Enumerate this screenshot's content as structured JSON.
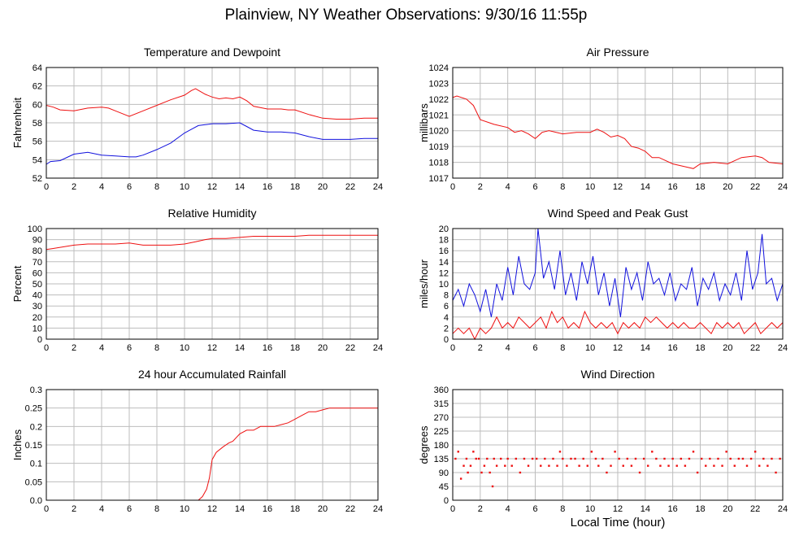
{
  "title": "Plainview, NY Weather Observations: 9/30/16 11:55p",
  "xlabel": "Local Time (hour)",
  "colors": {
    "red": "#ee1111",
    "blue": "#1111dd",
    "grid": "#bdbdbd"
  },
  "chart_data": [
    {
      "type": "line",
      "title": "Temperature and Dewpoint",
      "ylabel": "Fahrenheit",
      "xlim": [
        0,
        24
      ],
      "ylim": [
        52,
        64
      ],
      "xticks": [
        0,
        2,
        4,
        6,
        8,
        10,
        12,
        14,
        16,
        18,
        20,
        22,
        24
      ],
      "yticks": [
        52,
        54,
        56,
        58,
        60,
        62,
        64
      ],
      "grid": true,
      "series": [
        {
          "color": "red",
          "x": [
            0,
            0.5,
            1,
            2,
            3,
            4,
            4.5,
            5,
            5.5,
            6,
            7,
            8,
            9,
            10,
            10.5,
            10.8,
            11.5,
            12,
            12.5,
            13,
            13.5,
            14,
            14.5,
            15,
            16,
            17,
            17.5,
            18,
            19,
            20,
            21,
            22,
            23,
            24
          ],
          "y": [
            59.9,
            59.7,
            59.4,
            59.3,
            59.6,
            59.7,
            59.6,
            59.3,
            59.0,
            58.7,
            59.3,
            59.9,
            60.5,
            61.0,
            61.5,
            61.7,
            61.1,
            60.8,
            60.6,
            60.7,
            60.6,
            60.8,
            60.4,
            59.8,
            59.5,
            59.5,
            59.4,
            59.4,
            58.9,
            58.5,
            58.4,
            58.4,
            58.5,
            58.5
          ]
        },
        {
          "color": "blue",
          "x": [
            0,
            0.3,
            1,
            2,
            3,
            4,
            5,
            6,
            6.5,
            7,
            8,
            9,
            10,
            10.5,
            11,
            11.5,
            12,
            13,
            14,
            14.5,
            15,
            16,
            17,
            18,
            19,
            20,
            21,
            22,
            23,
            24
          ],
          "y": [
            53.5,
            53.8,
            53.9,
            54.6,
            54.8,
            54.5,
            54.4,
            54.3,
            54.3,
            54.5,
            55.1,
            55.8,
            56.9,
            57.3,
            57.7,
            57.8,
            57.9,
            57.9,
            58.0,
            57.6,
            57.2,
            57.0,
            57.0,
            56.9,
            56.5,
            56.2,
            56.2,
            56.2,
            56.3,
            56.3
          ]
        }
      ]
    },
    {
      "type": "line",
      "title": "Air Pressure",
      "ylabel": "millibars",
      "xlim": [
        0,
        24
      ],
      "ylim": [
        1017,
        1024
      ],
      "xticks": [
        0,
        2,
        4,
        6,
        8,
        10,
        12,
        14,
        16,
        18,
        20,
        22,
        24
      ],
      "yticks": [
        1017,
        1018,
        1019,
        1020,
        1021,
        1022,
        1023,
        1024
      ],
      "grid": true,
      "series": [
        {
          "color": "red",
          "x": [
            0,
            0.3,
            1,
            1.5,
            2,
            3,
            4,
            4.5,
            5,
            5.5,
            6,
            6.5,
            7,
            8,
            9,
            10,
            10.5,
            11,
            11.5,
            12,
            12.5,
            13,
            13.5,
            14,
            14.5,
            15,
            16,
            17,
            17.5,
            18,
            19,
            20,
            20.5,
            21,
            22,
            22.5,
            23,
            24
          ],
          "y": [
            1022.1,
            1022.2,
            1022.0,
            1021.6,
            1020.7,
            1020.4,
            1020.2,
            1019.9,
            1020.0,
            1019.8,
            1019.5,
            1019.9,
            1020.0,
            1019.8,
            1019.9,
            1019.9,
            1020.1,
            1019.9,
            1019.6,
            1019.7,
            1019.5,
            1019.0,
            1018.9,
            1018.7,
            1018.3,
            1018.3,
            1017.9,
            1017.7,
            1017.6,
            1017.9,
            1018.0,
            1017.9,
            1018.1,
            1018.3,
            1018.4,
            1018.3,
            1018.0,
            1017.9
          ]
        }
      ]
    },
    {
      "type": "line",
      "title": "Relative Humidity",
      "ylabel": "Percent",
      "xlim": [
        0,
        24
      ],
      "ylim": [
        0,
        100
      ],
      "xticks": [
        0,
        2,
        4,
        6,
        8,
        10,
        12,
        14,
        16,
        18,
        20,
        22,
        24
      ],
      "yticks": [
        0,
        10,
        20,
        30,
        40,
        50,
        60,
        70,
        80,
        90,
        100
      ],
      "grid": true,
      "series": [
        {
          "color": "red",
          "x": [
            0,
            0.5,
            1,
            2,
            3,
            4,
            5,
            6,
            7,
            8,
            9,
            10,
            10.8,
            11.5,
            12,
            13,
            14,
            15,
            16,
            17,
            18,
            19,
            20,
            21,
            22,
            23,
            24
          ],
          "y": [
            81,
            82,
            83,
            85,
            86,
            86,
            86,
            87,
            85,
            85,
            85,
            86,
            88,
            90,
            91,
            91,
            92,
            93,
            93,
            93,
            93,
            94,
            94,
            94,
            94,
            94,
            94
          ]
        }
      ]
    },
    {
      "type": "line",
      "title": "Wind Speed and Peak Gust",
      "ylabel": "miles/hour",
      "xlim": [
        0,
        24
      ],
      "ylim": [
        0,
        20
      ],
      "xticks": [
        0,
        2,
        4,
        6,
        8,
        10,
        12,
        14,
        16,
        18,
        20,
        22,
        24
      ],
      "yticks": [
        0,
        2,
        4,
        6,
        8,
        10,
        12,
        14,
        16,
        18,
        20
      ],
      "grid": true,
      "series": [
        {
          "color": "blue",
          "x": [
            0,
            0.4,
            0.8,
            1.2,
            1.6,
            2,
            2.4,
            2.8,
            3.2,
            3.6,
            4,
            4.4,
            4.8,
            5.2,
            5.6,
            6,
            6.2,
            6.6,
            7,
            7.4,
            7.8,
            8.2,
            8.6,
            9,
            9.4,
            9.8,
            10.2,
            10.6,
            11,
            11.4,
            11.8,
            12.2,
            12.6,
            13,
            13.4,
            13.8,
            14.2,
            14.6,
            15,
            15.4,
            15.8,
            16.2,
            16.6,
            17,
            17.4,
            17.8,
            18.2,
            18.6,
            19,
            19.4,
            19.8,
            20.2,
            20.6,
            21,
            21.4,
            21.8,
            22.2,
            22.5,
            22.8,
            23.2,
            23.6,
            24
          ],
          "y": [
            7,
            9,
            6,
            10,
            8,
            5,
            9,
            4,
            10,
            7,
            13,
            8,
            15,
            10,
            9,
            12,
            20,
            11,
            14,
            9,
            16,
            8,
            12,
            7,
            14,
            10,
            15,
            8,
            12,
            6,
            11,
            4,
            13,
            9,
            12,
            7,
            14,
            10,
            11,
            8,
            12,
            7,
            10,
            9,
            13,
            6,
            11,
            9,
            12,
            7,
            10,
            8,
            12,
            7,
            16,
            9,
            12,
            19,
            10,
            11,
            7,
            10
          ]
        },
        {
          "color": "red",
          "x": [
            0,
            0.4,
            0.8,
            1.2,
            1.6,
            2,
            2.4,
            2.8,
            3.2,
            3.6,
            4,
            4.4,
            4.8,
            5.2,
            5.6,
            6,
            6.4,
            6.8,
            7.2,
            7.6,
            8,
            8.4,
            8.8,
            9.2,
            9.6,
            10,
            10.4,
            10.8,
            11.2,
            11.6,
            12,
            12.4,
            12.8,
            13.2,
            13.6,
            14,
            14.4,
            14.8,
            15.2,
            15.6,
            16,
            16.4,
            16.8,
            17.2,
            17.6,
            18,
            18.4,
            18.8,
            19.2,
            19.6,
            20,
            20.4,
            20.8,
            21.2,
            21.6,
            22,
            22.4,
            22.8,
            23.2,
            23.6,
            24
          ],
          "y": [
            1,
            2,
            1,
            2,
            0,
            2,
            1,
            2,
            4,
            2,
            3,
            2,
            4,
            3,
            2,
            3,
            4,
            2,
            5,
            3,
            4,
            2,
            3,
            2,
            5,
            3,
            2,
            3,
            2,
            3,
            1,
            3,
            2,
            3,
            2,
            4,
            3,
            4,
            3,
            2,
            3,
            2,
            3,
            2,
            2,
            3,
            2,
            1,
            3,
            2,
            3,
            2,
            3,
            1,
            2,
            3,
            1,
            2,
            3,
            2,
            3
          ]
        }
      ]
    },
    {
      "type": "line",
      "title": "24 hour Accumulated Rainfall",
      "ylabel": "Inches",
      "xlim": [
        0,
        24
      ],
      "ylim": [
        0,
        0.3
      ],
      "xticks": [
        0,
        2,
        4,
        6,
        8,
        10,
        12,
        14,
        16,
        18,
        20,
        22,
        24
      ],
      "yticks": [
        0,
        0.05,
        0.1,
        0.15,
        0.2,
        0.25,
        0.3
      ],
      "ytick_labels": [
        "0.0",
        "0.05",
        "0.1",
        "0.15",
        "0.2",
        "0.25",
        "0.3"
      ],
      "grid": true,
      "series": [
        {
          "color": "red",
          "x": [
            0,
            11,
            11.3,
            11.6,
            11.8,
            12,
            12.3,
            12.8,
            13.2,
            13.5,
            14,
            14.5,
            15,
            15.5,
            16,
            16.5,
            17,
            17.5,
            18,
            18.5,
            19,
            19.5,
            20,
            20.5,
            21,
            24
          ],
          "y": [
            0,
            0,
            0.01,
            0.03,
            0.06,
            0.11,
            0.13,
            0.145,
            0.155,
            0.16,
            0.18,
            0.19,
            0.19,
            0.2,
            0.2,
            0.2,
            0.205,
            0.21,
            0.22,
            0.23,
            0.24,
            0.24,
            0.245,
            0.25,
            0.25,
            0.25
          ]
        }
      ]
    },
    {
      "type": "scatter",
      "title": "Wind Direction",
      "ylabel": "degrees",
      "xlim": [
        0,
        24
      ],
      "ylim": [
        0,
        360
      ],
      "xticks": [
        0,
        2,
        4,
        6,
        8,
        10,
        12,
        14,
        16,
        18,
        20,
        22,
        24
      ],
      "yticks": [
        0,
        45,
        90,
        135,
        180,
        225,
        270,
        315,
        360
      ],
      "grid": true,
      "series": [
        {
          "color": "red",
          "x": [
            0.2,
            0.4,
            0.6,
            0.8,
            1,
            1.1,
            1.3,
            1.5,
            1.7,
            1.9,
            2.1,
            2.3,
            2.5,
            2.7,
            2.9,
            3,
            3.2,
            3.5,
            3.8,
            4,
            4.3,
            4.6,
            4.9,
            5.2,
            5.5,
            5.8,
            6.1,
            6.4,
            6.7,
            7,
            7.3,
            7.6,
            7.8,
            8,
            8.3,
            8.6,
            8.9,
            9.2,
            9.5,
            9.8,
            10.1,
            10.4,
            10.6,
            10.9,
            11.2,
            11.5,
            11.8,
            12.1,
            12.4,
            12.7,
            13,
            13.3,
            13.6,
            13.9,
            14.2,
            14.5,
            14.8,
            15.1,
            15.4,
            15.7,
            16,
            16.3,
            16.6,
            16.9,
            17.2,
            17.5,
            17.8,
            18.1,
            18.4,
            18.7,
            19,
            19.3,
            19.6,
            19.9,
            20.2,
            20.5,
            20.8,
            21.1,
            21.4,
            21.7,
            22,
            22.3,
            22.6,
            22.9,
            23.2,
            23.5,
            23.8
          ],
          "y": [
            135,
            158,
            70,
            112,
            135,
            90,
            112,
            158,
            135,
            135,
            90,
            112,
            135,
            90,
            45,
            135,
            112,
            135,
            112,
            135,
            112,
            135,
            90,
            135,
            112,
            135,
            135,
            112,
            135,
            112,
            135,
            112,
            158,
            135,
            112,
            135,
            135,
            112,
            135,
            112,
            158,
            135,
            112,
            135,
            90,
            112,
            158,
            135,
            112,
            135,
            112,
            135,
            90,
            135,
            112,
            158,
            135,
            112,
            135,
            112,
            135,
            112,
            135,
            112,
            135,
            158,
            90,
            135,
            112,
            135,
            112,
            135,
            112,
            158,
            135,
            112,
            135,
            135,
            112,
            135,
            158,
            112,
            135,
            112,
            135,
            90,
            135
          ]
        }
      ]
    }
  ]
}
